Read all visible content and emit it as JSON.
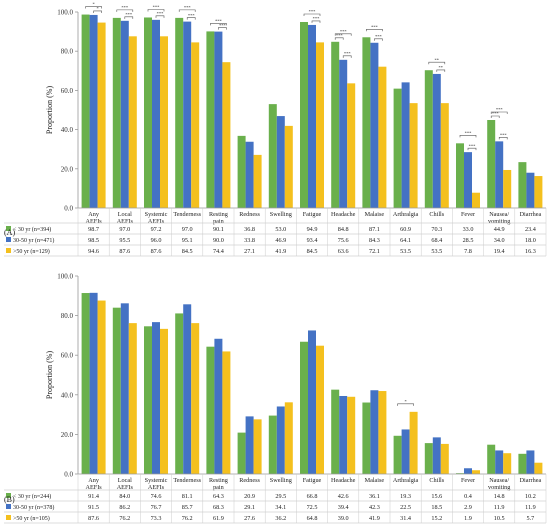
{
  "colors": {
    "lt30": "#6ab04c",
    "mid": "#4472c4",
    "gt50": "#f4c01e",
    "axis": "#9a9a9a"
  },
  "chart_data": [
    {
      "type": "bar",
      "panel_label": "(A)",
      "ylabel": "Proportion (%)",
      "ylim": [
        0,
        100
      ],
      "yticks": [
        "0.0",
        "20.0",
        "40.0",
        "60.0",
        "80.0",
        "100.0"
      ],
      "categories": [
        "Any AEFIs",
        "Local AEFIs",
        "Systemic AEFIs",
        "Tenderness",
        "Resting pain",
        "Redness",
        "Swelling",
        "Fatigue",
        "Headache",
        "Malaise",
        "Arthralgia",
        "Chills",
        "Fever",
        "Nausea/ vomiting",
        "Diarrhea"
      ],
      "series": [
        {
          "name": "< 30 yr (n=394)",
          "color_key": "lt30",
          "values": [
            98.7,
            97.0,
            97.2,
            97.0,
            90.1,
            36.8,
            53.0,
            94.9,
            84.8,
            87.1,
            60.9,
            70.3,
            33.0,
            44.9,
            23.4
          ],
          "labels": [
            "98.7",
            "97.0",
            "97.2",
            "97.0",
            "90.1",
            "36.8",
            "53.0",
            "94.9",
            "84.8",
            "87.1",
            "60.9",
            "70.3",
            "33.0",
            "44.9",
            "23.4"
          ]
        },
        {
          "name": "30-50 yr (n=471)",
          "color_key": "mid",
          "values": [
            98.5,
            95.5,
            96.0,
            95.1,
            90.0,
            33.8,
            46.9,
            93.4,
            75.6,
            84.3,
            64.1,
            68.4,
            28.5,
            34.0,
            18.0
          ],
          "labels": [
            "98.5",
            "95.5",
            "96.0",
            "95.1",
            "90.0",
            "33.8",
            "46.9",
            "93.4",
            "75.6",
            "84.3",
            "64.1",
            "68.4",
            "28.5",
            "34.0",
            "18.0"
          ]
        },
        {
          "name": ">50 yr (n=129)",
          "color_key": "gt50",
          "values": [
            94.6,
            87.6,
            87.6,
            84.5,
            74.4,
            27.1,
            41.9,
            84.5,
            63.6,
            72.1,
            53.5,
            53.5,
            7.8,
            19.4,
            16.3
          ],
          "labels": [
            "94.6",
            "87.6",
            "87.6",
            "84.5",
            "74.4",
            "27.1",
            "41.9",
            "84.5",
            "63.6",
            "72.1",
            "53.5",
            "53.5",
            "7.8",
            "19.4",
            "16.3"
          ]
        }
      ],
      "significance": [
        {
          "category": 0,
          "pairs": [
            [
              0,
              2
            ],
            [
              1,
              2
            ]
          ],
          "marks": [
            "*",
            "*"
          ]
        },
        {
          "category": 1,
          "pairs": [
            [
              0,
              2
            ],
            [
              1,
              2
            ]
          ],
          "marks": [
            "***",
            "***"
          ]
        },
        {
          "category": 2,
          "pairs": [
            [
              0,
              2
            ],
            [
              1,
              2
            ]
          ],
          "marks": [
            "***",
            "***"
          ]
        },
        {
          "category": 3,
          "pairs": [
            [
              0,
              2
            ],
            [
              1,
              2
            ]
          ],
          "marks": [
            "***",
            "***"
          ]
        },
        {
          "category": 4,
          "pairs": [
            [
              0,
              2
            ],
            [
              1,
              2
            ]
          ],
          "marks": [
            "***",
            "***"
          ]
        },
        {
          "category": 7,
          "pairs": [
            [
              0,
              2
            ],
            [
              1,
              2
            ]
          ],
          "marks": [
            "***",
            "***"
          ]
        },
        {
          "category": 8,
          "pairs": [
            [
              0,
              1
            ],
            [
              0,
              2
            ],
            [
              1,
              2
            ]
          ],
          "marks": [
            "***",
            "***",
            "***"
          ]
        },
        {
          "category": 9,
          "pairs": [
            [
              0,
              2
            ],
            [
              1,
              2
            ]
          ],
          "marks": [
            "***",
            "***"
          ]
        },
        {
          "category": 11,
          "pairs": [
            [
              0,
              2
            ],
            [
              1,
              2
            ]
          ],
          "marks": [
            "**",
            "**"
          ]
        },
        {
          "category": 12,
          "pairs": [
            [
              0,
              2
            ],
            [
              1,
              2
            ]
          ],
          "marks": [
            "***",
            "***"
          ]
        },
        {
          "category": 13,
          "pairs": [
            [
              0,
              1
            ],
            [
              0,
              2
            ],
            [
              1,
              2
            ]
          ],
          "marks": [
            "***",
            "***",
            "***"
          ]
        }
      ]
    },
    {
      "type": "bar",
      "panel_label": "(B)",
      "ylabel": "Proportion (%)",
      "ylim": [
        0,
        100
      ],
      "yticks": [
        "0.0",
        "20.0",
        "40.0",
        "60.0",
        "80.0",
        "100.0"
      ],
      "categories": [
        "Any AEFIs",
        "Local AEFIs",
        "Systemic AEFIs",
        "Tenderness",
        "Resting pain",
        "Redness",
        "Swelling",
        "Fatigue",
        "Headache",
        "Malaise",
        "Arthralgia",
        "Chills",
        "Fever",
        "Nausea/ vomiting",
        "Diarrhea"
      ],
      "series": [
        {
          "name": "< 30 yr (n=244)",
          "color_key": "lt30",
          "values": [
            91.4,
            84.0,
            74.6,
            81.1,
            64.3,
            20.9,
            29.5,
            66.8,
            42.6,
            36.1,
            19.3,
            15.6,
            0.4,
            14.8,
            10.2
          ],
          "labels": [
            "91.4",
            "84.0",
            "74.6",
            "81.1",
            "64.3",
            "20.9",
            "29.5",
            "66.8",
            "42.6",
            "36.1",
            "19.3",
            "15.6",
            "0.4",
            "14.8",
            "10.2"
          ]
        },
        {
          "name": "30-50 yr (n=378)",
          "color_key": "mid",
          "values": [
            91.5,
            86.2,
            76.7,
            85.7,
            68.3,
            29.1,
            34.1,
            72.5,
            39.4,
            42.3,
            22.5,
            18.5,
            2.9,
            11.9,
            11.9
          ],
          "labels": [
            "91.5",
            "86.2",
            "76.7",
            "85.7",
            "68.3",
            "29.1",
            "34.1",
            "72.5",
            "39.4",
            "42.3",
            "22.5",
            "18.5",
            "2.9",
            "11.9",
            "11.9"
          ]
        },
        {
          "name": ">50 yr (n=105)",
          "color_key": "gt50",
          "values": [
            87.6,
            76.2,
            73.3,
            76.2,
            61.9,
            27.6,
            36.2,
            64.8,
            39.0,
            41.9,
            31.4,
            15.2,
            1.9,
            10.5,
            5.7
          ],
          "labels": [
            "87.6",
            "76.2",
            "73.3",
            "76.2",
            "61.9",
            "27.6",
            "36.2",
            "64.8",
            "39.0",
            "41.9",
            "31.4",
            "15.2",
            "1.9",
            "10.5",
            "5.7"
          ]
        }
      ],
      "significance": [
        {
          "category": 10,
          "pairs": [
            [
              0,
              2
            ]
          ],
          "marks": [
            "*"
          ]
        }
      ]
    }
  ]
}
